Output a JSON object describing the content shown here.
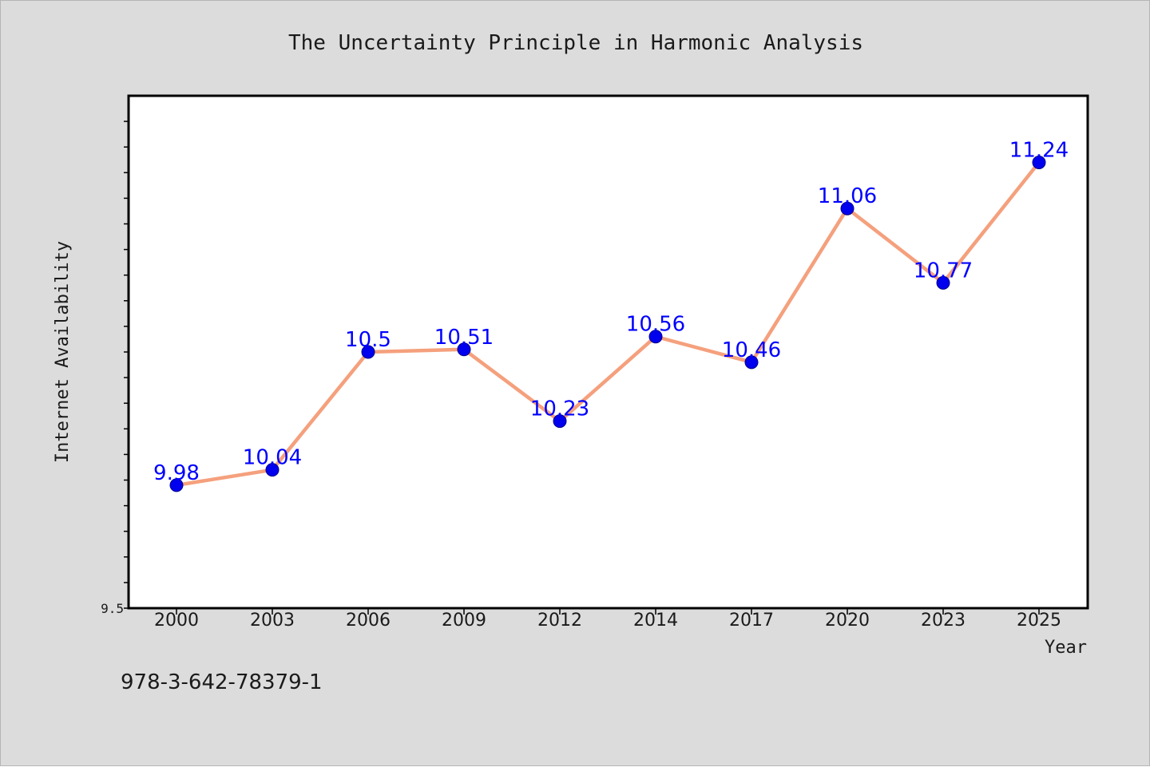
{
  "chart_data": {
    "type": "line",
    "title": "The Uncertainty Principle in Harmonic Analysis",
    "xlabel": "Year",
    "ylabel": "Internet Availability",
    "categories": [
      "2000",
      "2003",
      "2006",
      "2009",
      "2012",
      "2014",
      "2017",
      "2020",
      "2023",
      "2025"
    ],
    "series": [
      {
        "values": [
          9.98,
          10.04,
          10.5,
          10.51,
          10.23,
          10.56,
          10.46,
          11.06,
          10.77,
          11.24
        ]
      }
    ],
    "data_labels": [
      "9.98",
      "10.04",
      "10.5",
      "10.51",
      "10.23",
      "10.56",
      "10.46",
      "11.06",
      "10.77",
      "11.24"
    ],
    "ylim": [
      9.5,
      11.5
    ],
    "y_tick_labels": [
      {
        "value": 9.5,
        "label": "9.5"
      }
    ],
    "y_minor_step": 0.1,
    "grid": false,
    "legend": "none",
    "colors": {
      "background": "#dcdcdc",
      "plot_background": "#ffffff",
      "line": "#f5a07d",
      "marker": "#0000ee",
      "data_label": "#0000ff",
      "text": "#1a1a1a"
    }
  },
  "footer": {
    "isbn": "978-3-642-78379-1"
  }
}
